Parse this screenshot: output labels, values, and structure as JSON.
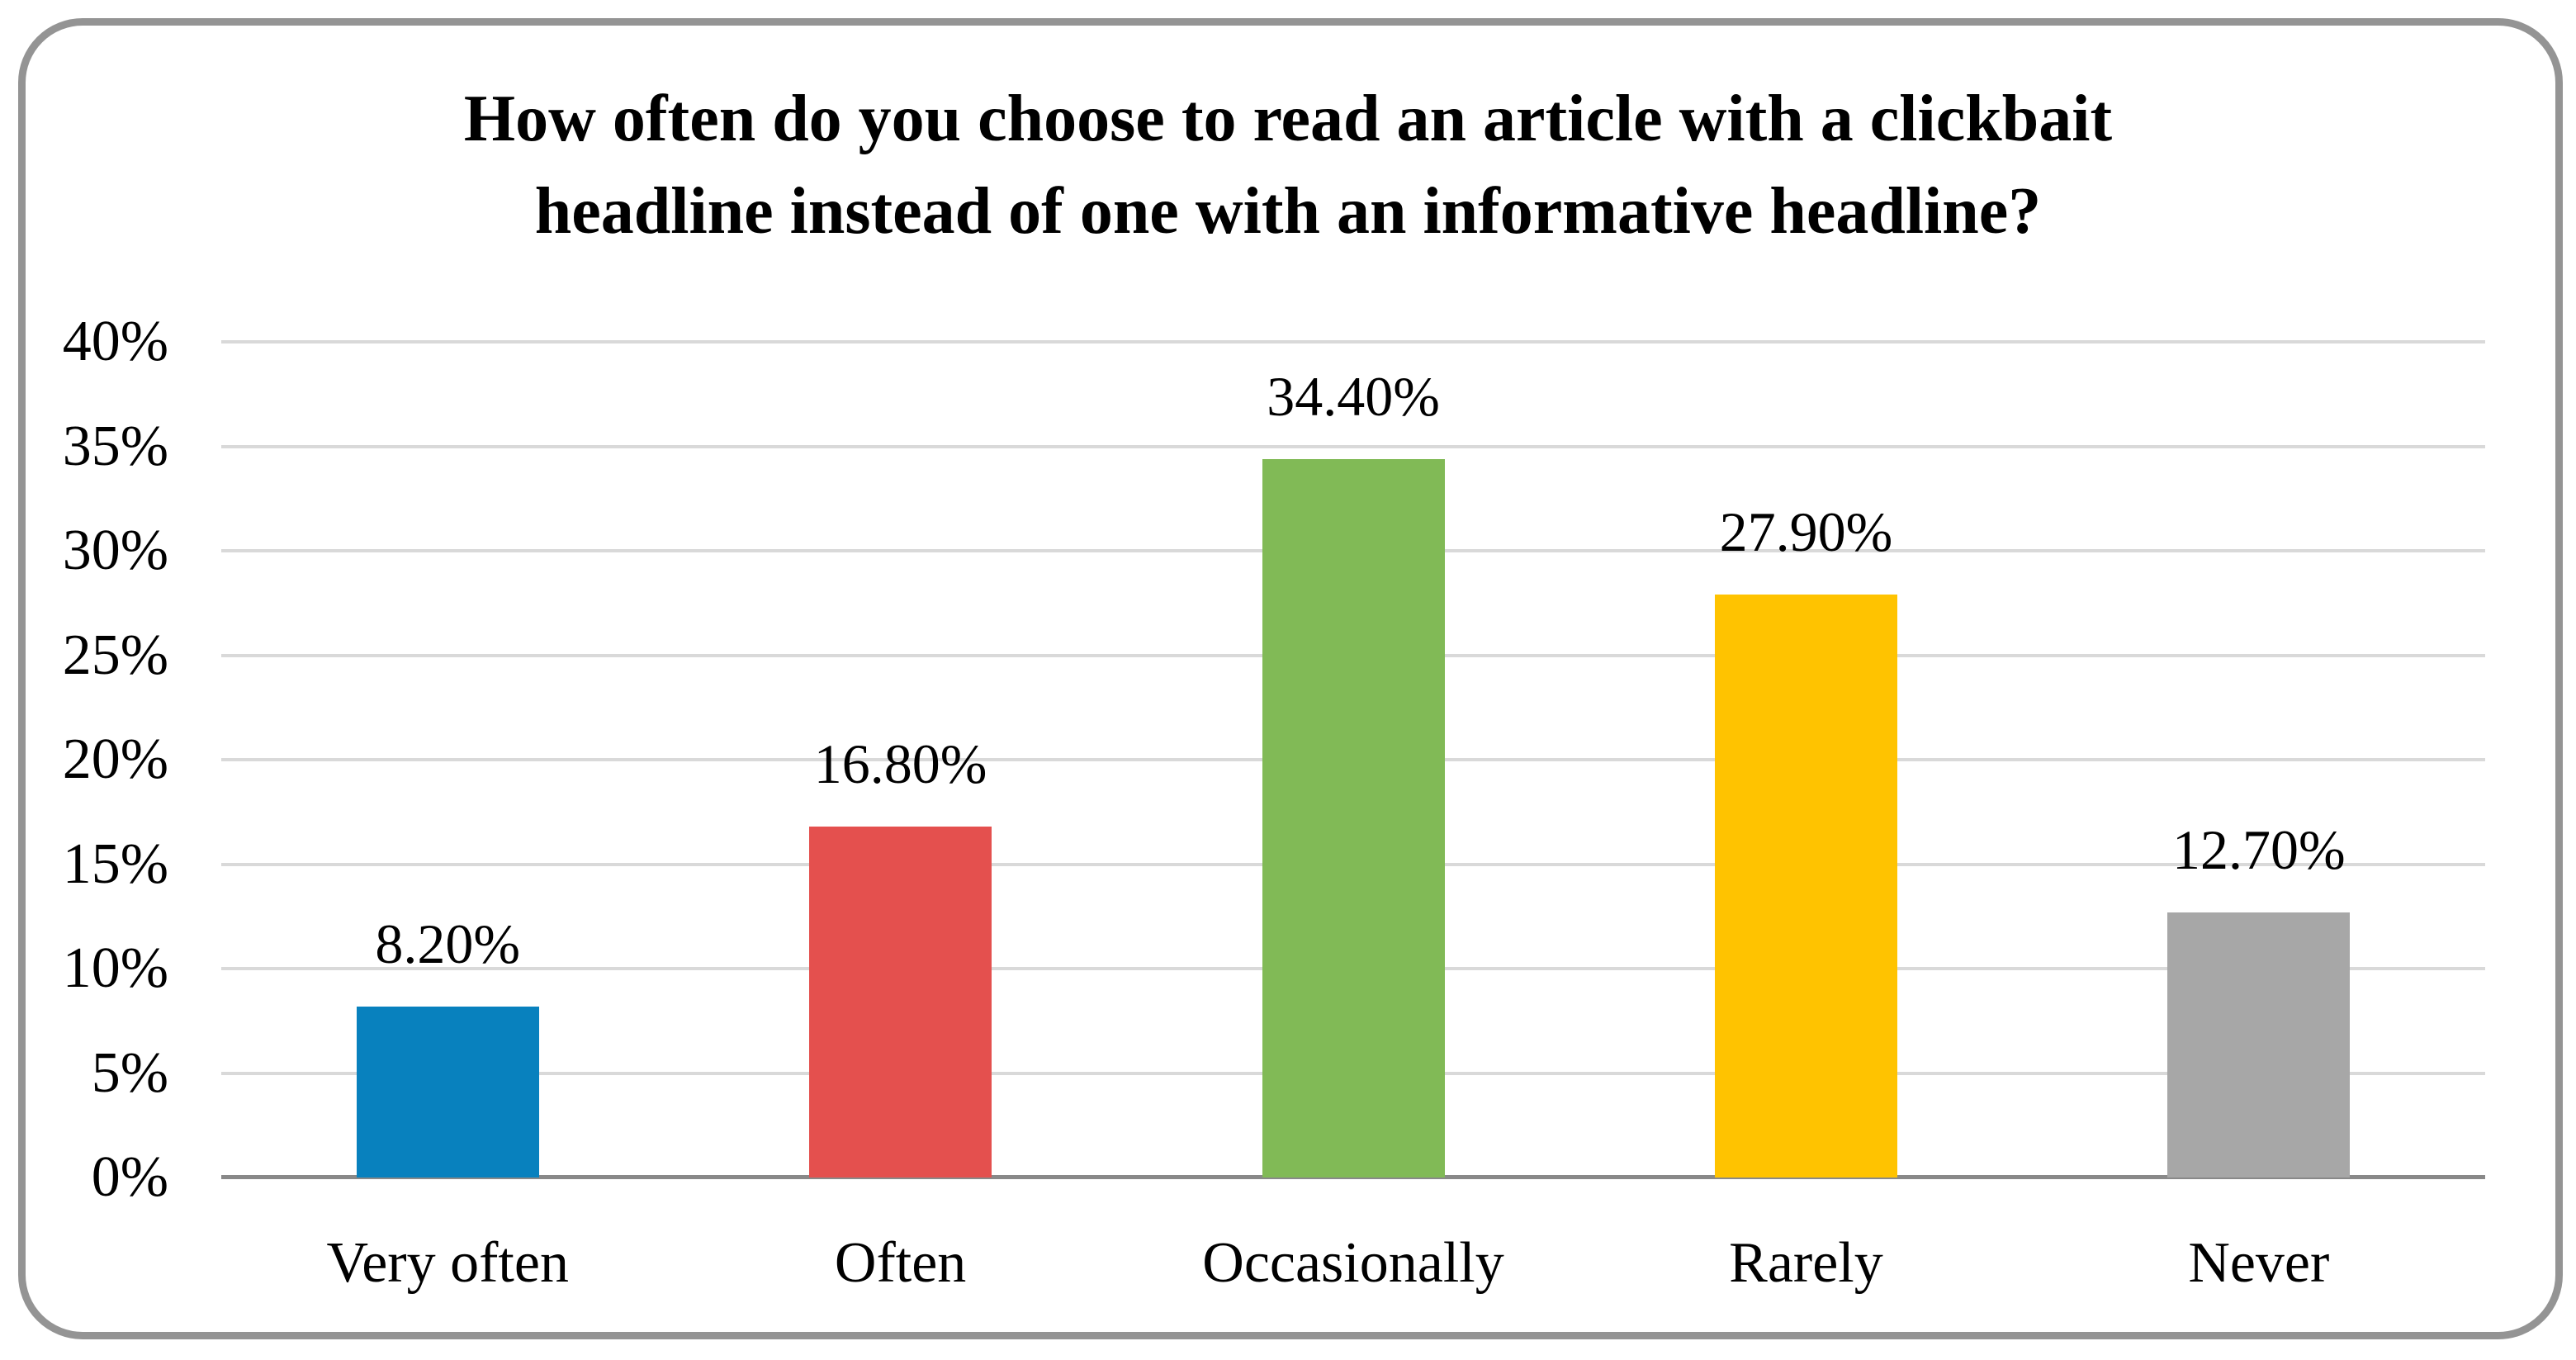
{
  "frame": {
    "border_color": "#949494"
  },
  "chart_data": {
    "type": "bar",
    "title": "How often do you choose to read an article with a clickbait headline instead of one with an informative headline?",
    "title_lines": [
      "How often do you choose to read an article with a clickbait",
      "headline instead of one with an informative headline?"
    ],
    "categories": [
      "Very often",
      "Often",
      "Occasionally",
      "Rarely",
      "Never"
    ],
    "values": [
      8.2,
      16.8,
      34.4,
      27.9,
      12.7
    ],
    "value_labels": [
      "8.20%",
      "16.80%",
      "34.40%",
      "27.90%",
      "12.70%"
    ],
    "bar_colors": [
      "#0881BE",
      "#E4504E",
      "#81BA56",
      "#FFC300",
      "#A7A7A7"
    ],
    "xlabel": "",
    "ylabel": "",
    "ylim": [
      0,
      40
    ],
    "ytick_step": 5,
    "yticks": [
      0,
      5,
      10,
      15,
      20,
      25,
      30,
      35,
      40
    ],
    "ytick_labels": [
      "0%",
      "5%",
      "10%",
      "15%",
      "20%",
      "25%",
      "30%",
      "35%",
      "40%"
    ],
    "grid": true,
    "gridline_color": "#D9D9D9",
    "axis_line_color": "#898989",
    "legend": "none",
    "text_color": "#000000"
  }
}
